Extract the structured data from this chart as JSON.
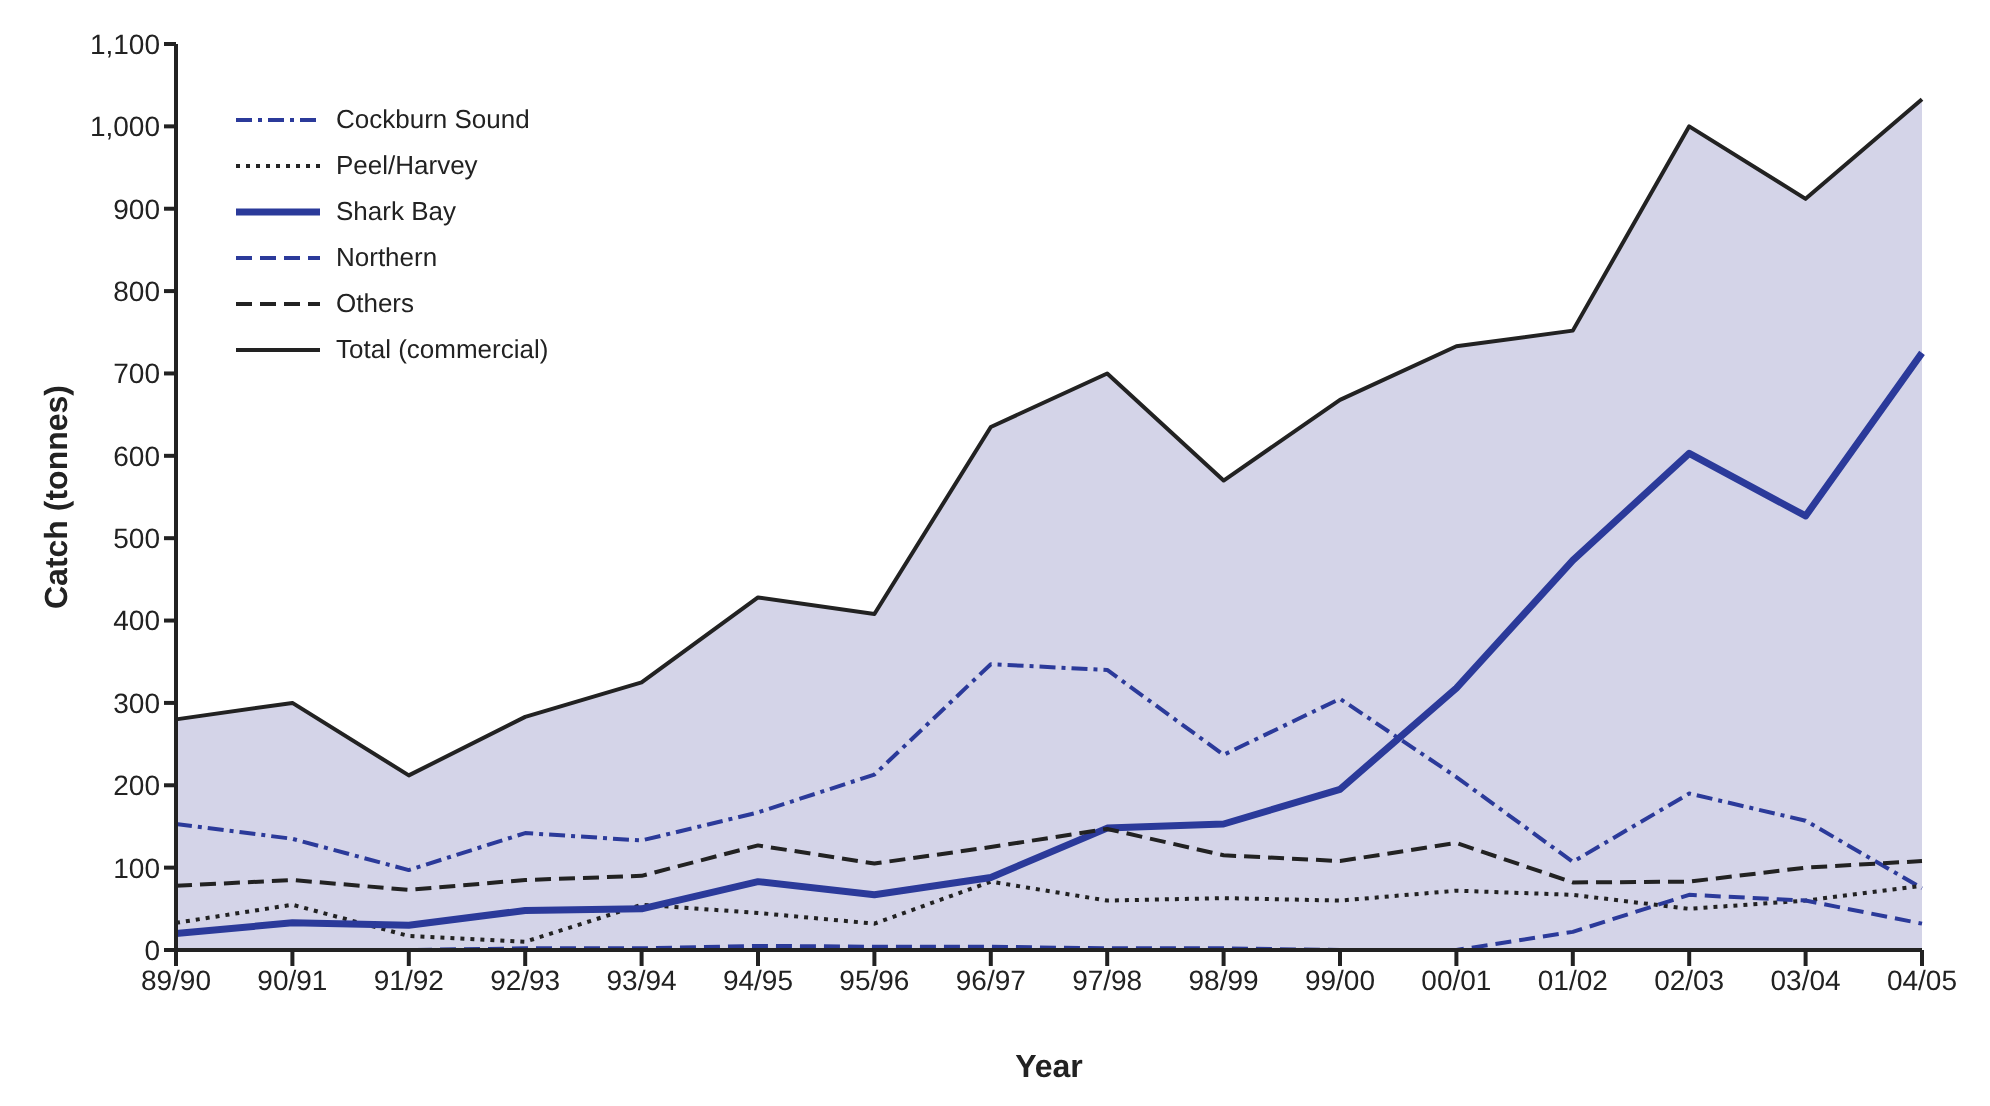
{
  "chart_data": {
    "type": "line",
    "xlabel": "Year",
    "ylabel": "Catch (tonnes)",
    "categories": [
      "89/90",
      "90/91",
      "91/92",
      "92/93",
      "93/94",
      "94/95",
      "95/96",
      "96/97",
      "97/98",
      "98/99",
      "99/00",
      "00/01",
      "01/02",
      "02/03",
      "03/04",
      "04/05"
    ],
    "series": [
      {
        "name": "Cockburn Sound",
        "color": "#2b3a9a",
        "line_style": "dashdot",
        "values": [
          153,
          135,
          97,
          142,
          133,
          167,
          213,
          347,
          340,
          237,
          305,
          210,
          107,
          190,
          157,
          75
        ]
      },
      {
        "name": "Peel/Harvey",
        "color": "#222222",
        "line_style": "dotted",
        "values": [
          33,
          55,
          17,
          10,
          55,
          45,
          32,
          83,
          60,
          63,
          60,
          72,
          67,
          50,
          60,
          78
        ]
      },
      {
        "name": "Shark Bay",
        "color": "#2b3a9a",
        "line_style": "solid",
        "values": [
          20,
          33,
          30,
          48,
          50,
          83,
          67,
          88,
          148,
          153,
          195,
          318,
          473,
          603,
          527,
          725
        ]
      },
      {
        "name": "Northern",
        "color": "#2b3a9a",
        "line_style": "dashed",
        "values": [
          0,
          0,
          0,
          2,
          2,
          5,
          4,
          4,
          2,
          2,
          0,
          0,
          22,
          67,
          60,
          32
        ]
      },
      {
        "name": "Others",
        "color": "#222222",
        "line_style": "dashed",
        "values": [
          78,
          85,
          73,
          85,
          90,
          127,
          105,
          125,
          147,
          115,
          108,
          130,
          82,
          83,
          100,
          108
        ]
      },
      {
        "name": "Total (commercial)",
        "type": "area",
        "color": "#d4d4e8",
        "line_style": "solid",
        "values": [
          280,
          300,
          212,
          283,
          325,
          428,
          408,
          635,
          700,
          570,
          668,
          733,
          752,
          1000,
          912,
          1033
        ]
      }
    ],
    "ylim": [
      0,
      1100
    ],
    "yticks": [
      0,
      100,
      200,
      300,
      400,
      500,
      600,
      700,
      800,
      900,
      {
        "value": 1000,
        "label": "1,000"
      },
      {
        "value": 1100,
        "label": "1,100"
      }
    ],
    "grid": false,
    "legend": "top left",
    "marker": "none"
  }
}
